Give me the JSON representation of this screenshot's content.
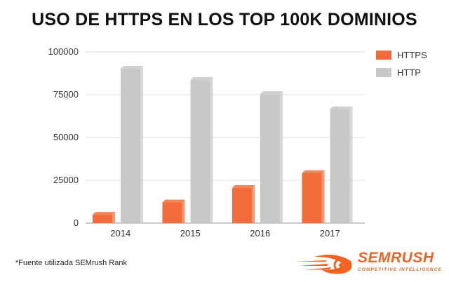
{
  "chart_data": {
    "type": "bar",
    "title": "USO DE HTTPS EN LOS TOP 100K DOMINIOS",
    "categories": [
      "2014",
      "2015",
      "2016",
      "2017"
    ],
    "series": [
      {
        "name": "HTTPS",
        "values": [
          6500,
          13700,
          22200,
          30800
        ],
        "color": "#f26b3a"
      },
      {
        "name": "HTTP",
        "values": [
          91800,
          85300,
          77000,
          68200
        ],
        "color": "#c8c8c8"
      }
    ],
    "ylim": [
      0,
      100000
    ],
    "yticks": [
      "0",
      "25000",
      "50000",
      "75000",
      "100000"
    ],
    "grid": true,
    "legend": "right"
  },
  "footnote": "*Fuente utilizada SEMrush Rank",
  "brand": {
    "name": "SEMRUSH",
    "tagline": "COMPETITIVE INTELLIGENCE",
    "color": "#f26322"
  }
}
